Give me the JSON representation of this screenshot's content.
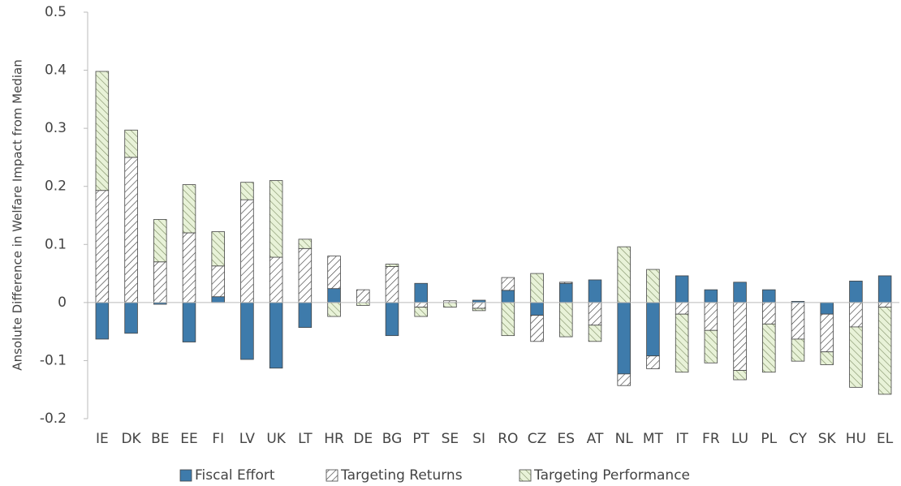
{
  "chart_data": {
    "type": "stacked_bar",
    "y_axis_label": "Ansolute Difference in Welfare Impact from Median",
    "categories": [
      "IE",
      "DK",
      "BE",
      "EE",
      "FI",
      "LV",
      "UK",
      "LT",
      "HR",
      "DE",
      "BG",
      "PT",
      "SE",
      "SI",
      "RO",
      "CZ",
      "ES",
      "AT",
      "NL",
      "MT",
      "IT",
      "FR",
      "LU",
      "PL",
      "CY",
      "SK",
      "HU",
      "EL"
    ],
    "series": [
      {
        "name": "Fiscal Effort",
        "color": "#3e7bab",
        "hatch": false,
        "values": [
          -0.063,
          -0.053,
          -0.003,
          -0.068,
          0.01,
          -0.098,
          -0.113,
          -0.043,
          0.024,
          0,
          -0.057,
          0.033,
          0,
          0.004,
          0.021,
          -0.022,
          0.033,
          0.039,
          -0.123,
          -0.092,
          0.046,
          0.022,
          0.035,
          0.022,
          0.002,
          -0.02,
          0.037,
          0.046
        ]
      },
      {
        "name": "Targeting Returns",
        "color": "#ffffff",
        "hatch": true,
        "values": [
          0.193,
          0.25,
          0.07,
          0.12,
          0.053,
          0.177,
          0.078,
          0.093,
          0.056,
          0.022,
          0.062,
          -0.008,
          0.003,
          -0.01,
          0.022,
          -0.045,
          0.002,
          -0.039,
          -0.02,
          -0.022,
          -0.02,
          -0.048,
          -0.117,
          -0.037,
          -0.063,
          -0.065,
          -0.042,
          -0.008
        ]
      },
      {
        "name": "Targeting Performance",
        "color": "#e8f2d8",
        "hatch": true,
        "values": [
          0.205,
          0.047,
          0.073,
          0.083,
          0.059,
          0.03,
          0.132,
          0.016,
          -0.024,
          -0.005,
          0.004,
          -0.016,
          -0.008,
          -0.004,
          -0.057,
          0.05,
          -0.059,
          -0.028,
          0.096,
          0.057,
          -0.1,
          -0.056,
          -0.016,
          -0.083,
          -0.038,
          -0.022,
          -0.104,
          -0.15
        ]
      }
    ],
    "ylim": [
      -0.2,
      0.5
    ],
    "yticks": [
      -0.2,
      -0.1,
      0,
      0.1,
      0.2,
      0.3,
      0.4,
      0.5
    ],
    "legend": "bottom"
  }
}
